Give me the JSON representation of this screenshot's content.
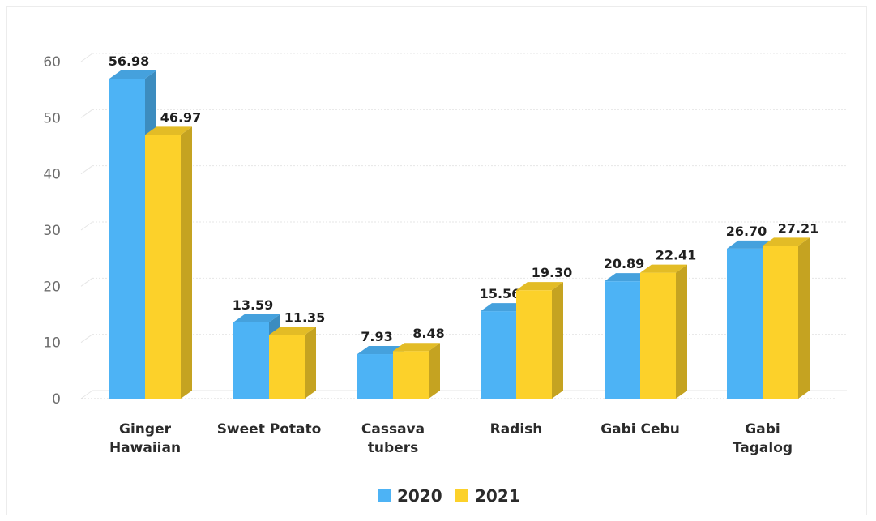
{
  "chart_data": {
    "type": "bar",
    "title": "",
    "xlabel": "",
    "ylabel": "",
    "ylim": [
      0,
      60
    ],
    "yticks": [
      0,
      10,
      20,
      30,
      40,
      50,
      60
    ],
    "grid": true,
    "legend_position": "bottom",
    "categories": [
      [
        "Ginger",
        "Hawaiian"
      ],
      [
        "Sweet Potato"
      ],
      [
        "Cassava",
        "tubers"
      ],
      [
        "Radish"
      ],
      [
        "Gabi Cebu"
      ],
      [
        "Gabi",
        "Tagalog"
      ]
    ],
    "series": [
      {
        "name": "2020",
        "values": [
          56.98,
          13.59,
          7.93,
          15.56,
          20.89,
          26.7
        ],
        "labels": [
          "56.98",
          "13.59",
          "7.93",
          "15.56",
          "20.89",
          "26.70"
        ],
        "color": "#4db3f5"
      },
      {
        "name": "2021",
        "values": [
          46.97,
          11.35,
          8.48,
          19.3,
          22.41,
          27.21
        ],
        "labels": [
          "46.97",
          "11.35",
          "8.48",
          "19.30",
          "22.41",
          "27.21"
        ],
        "color": "#fcd12a"
      }
    ]
  }
}
